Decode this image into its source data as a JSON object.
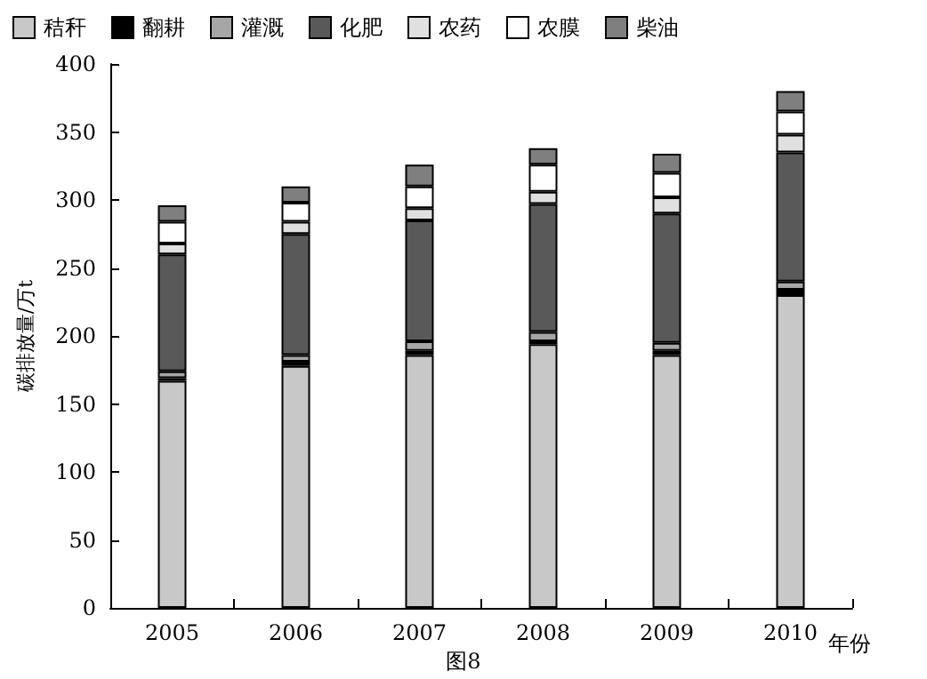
{
  "chart_data": {
    "type": "bar",
    "stacked": true,
    "xlabel": "年份",
    "ylabel": "碳排放量/万t",
    "annotations": [
      "图8"
    ],
    "categories": [
      "2005",
      "2006",
      "2007",
      "2008",
      "2009",
      "2010"
    ],
    "series": [
      {
        "name": "秸秆",
        "color": "#c8c8c8",
        "values": [
          167,
          178,
          186,
          194,
          186,
          230
        ]
      },
      {
        "name": "翻耕",
        "color": "#000000",
        "values": [
          2,
          3,
          3,
          2,
          3,
          4
        ]
      },
      {
        "name": "灌溉",
        "color": "#a6a6a6",
        "values": [
          5,
          5,
          7,
          7,
          6,
          6
        ]
      },
      {
        "name": "化肥",
        "color": "#595959",
        "values": [
          86,
          89,
          89,
          94,
          95,
          95
        ]
      },
      {
        "name": "农药",
        "color": "#e0e0e0",
        "values": [
          8,
          9,
          9,
          9,
          12,
          13
        ]
      },
      {
        "name": "农膜",
        "color": "#ffffff",
        "values": [
          16,
          14,
          16,
          20,
          18,
          17
        ]
      },
      {
        "name": "柴油",
        "color": "#7f7f7f",
        "values": [
          12,
          12,
          16,
          12,
          14,
          15
        ]
      }
    ],
    "ylim": [
      0,
      400
    ],
    "yticks": [
      0,
      50,
      100,
      150,
      200,
      250,
      300,
      350,
      400
    ],
    "grid": false,
    "legend": "top"
  }
}
